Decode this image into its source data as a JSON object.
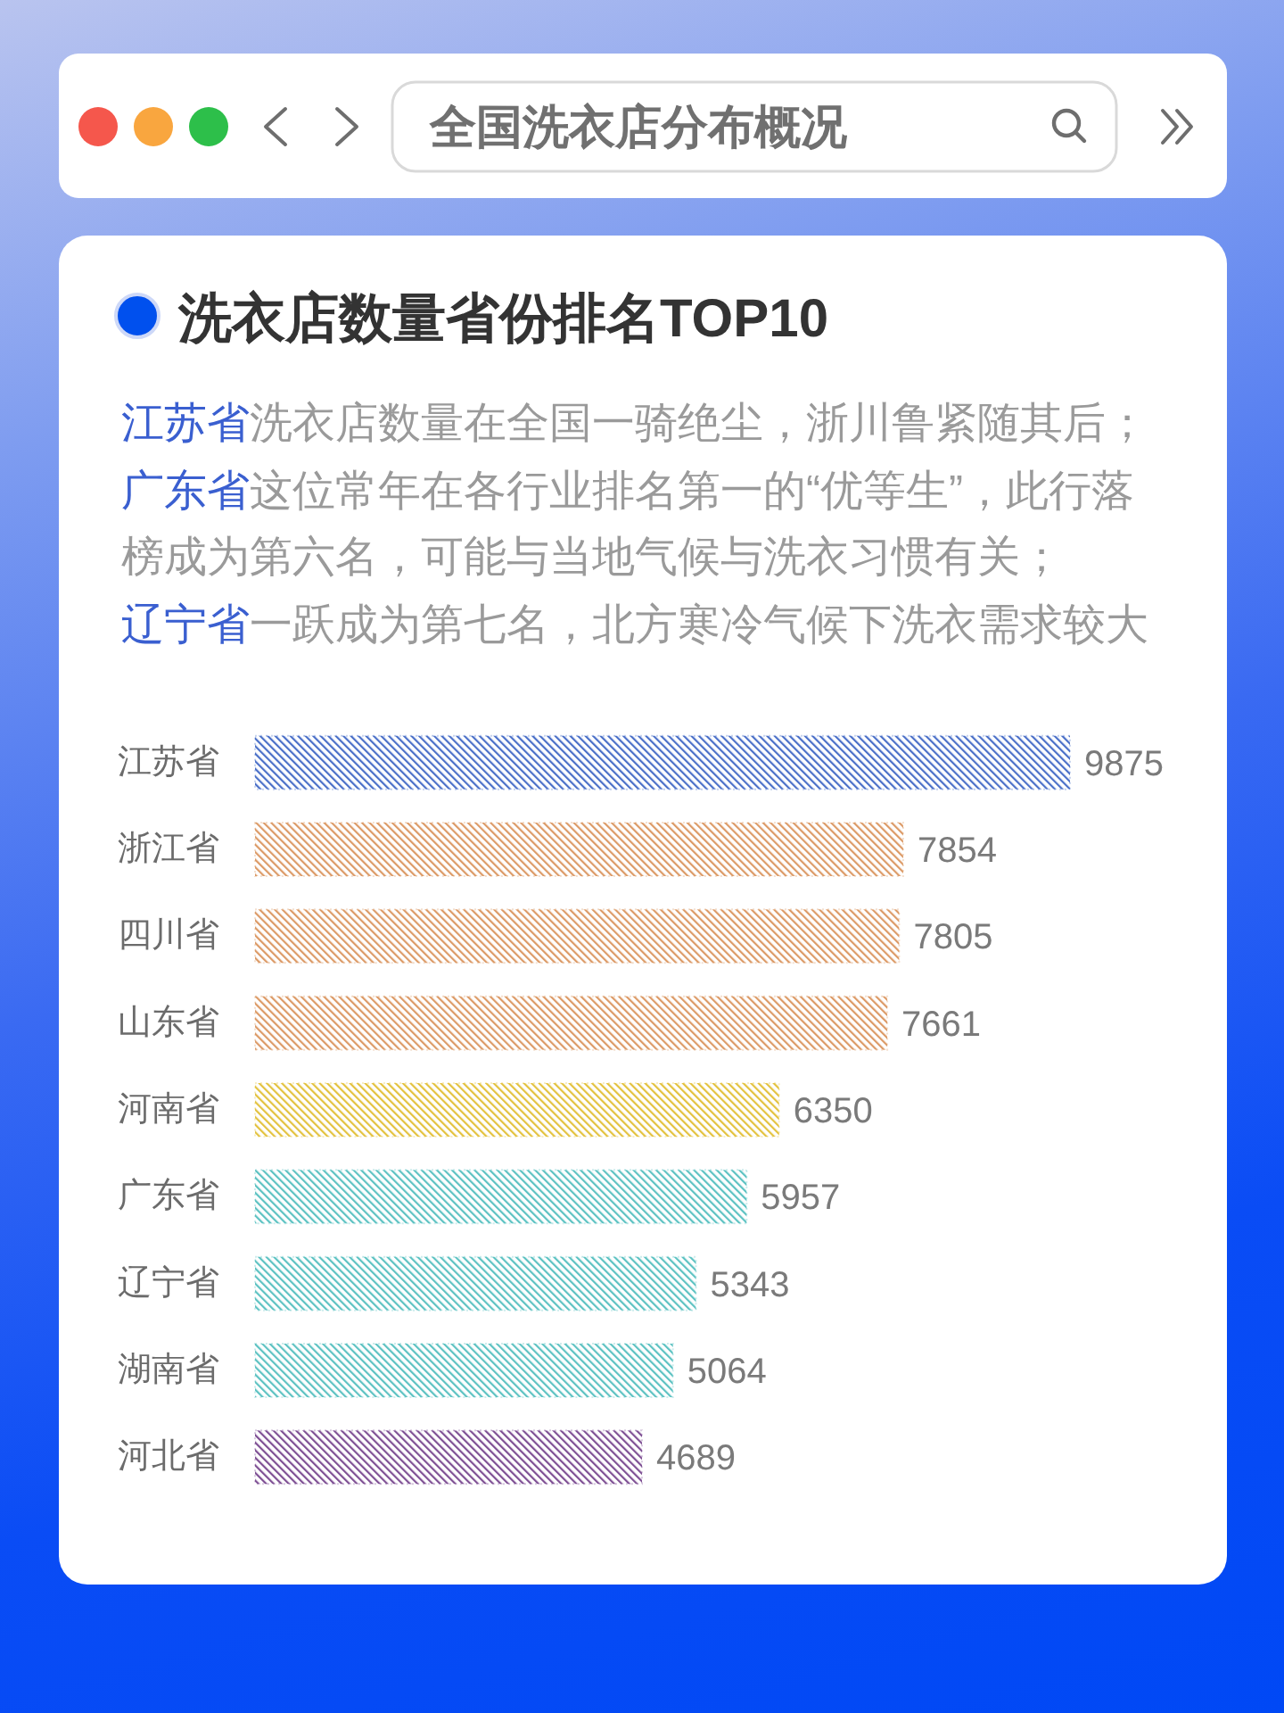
{
  "chart_data": {
    "type": "bar",
    "orientation": "horizontal",
    "title": "全国洗衣店分布概况",
    "subtitle": "洗衣店数量省份排名TOP10",
    "annotations": [
      "江苏省洗衣店数量在全国一骑绝尘，浙川鲁紧随其后；",
      "广东省这位常年在各行业排名第一的“优等生”，此行落榜成为第六名，可能与当地气候与洗衣习惯有关；",
      "辽宁省一跃成为第七名，北方寒冷气候下洗衣需求较大"
    ],
    "categories": [
      "江苏省",
      "浙江省",
      "四川省",
      "山东省",
      "河南省",
      "广东省",
      "辽宁省",
      "湖南省",
      "河北省"
    ],
    "values": [
      9875,
      7854,
      7805,
      7661,
      6350,
      5957,
      5343,
      5064,
      4689
    ],
    "colors": [
      "#4a6fc8",
      "#dc9a66",
      "#dc9a66",
      "#dc9a66",
      "#e3c23e",
      "#5cc2c2",
      "#5cc2c2",
      "#5cc2c2",
      "#7e4f94"
    ],
    "data_labels": true
  }
}
